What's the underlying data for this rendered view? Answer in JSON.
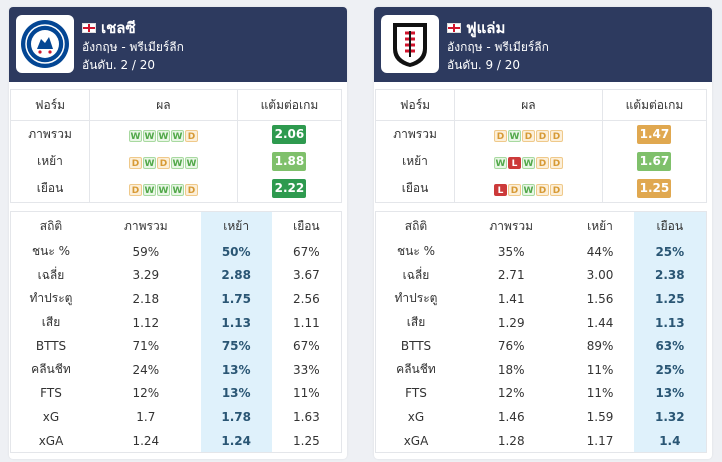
{
  "colors": {
    "header_bg": "#2d3a5f",
    "ppg_green_dark": "#2e9a4f",
    "ppg_green_light": "#7fc06b",
    "ppg_orange": "#e0a850",
    "highlight": "#dff1fb"
  },
  "form_headers": [
    "ฟอร์ม",
    "ผล",
    "แต้มต่อเกม"
  ],
  "stats_headers": [
    "สถิติ",
    "ภาพรวม",
    "เหย้า",
    "เยือน"
  ],
  "teams": [
    {
      "name": "เชลซี",
      "league": "อังกฤษ - พรีเมียร์ลีก",
      "rank": "อันดับ. 2 / 20",
      "logo_icon": "chelsea-crest-icon",
      "highlight_col": 2,
      "form": [
        {
          "label": "ภาพรวม",
          "results": [
            "W",
            "W",
            "W",
            "W",
            "D"
          ],
          "ppg": "2.06",
          "ppg_color": "#2e9a4f"
        },
        {
          "label": "เหย้า",
          "results": [
            "D",
            "W",
            "D",
            "W",
            "W"
          ],
          "ppg": "1.88",
          "ppg_color": "#7fc06b"
        },
        {
          "label": "เยือน",
          "results": [
            "D",
            "W",
            "W",
            "W",
            "D"
          ],
          "ppg": "2.22",
          "ppg_color": "#2e9a4f"
        }
      ],
      "stats": [
        {
          "label": "ชนะ %",
          "values": [
            "59%",
            "50%",
            "67%"
          ]
        },
        {
          "label": "เฉลี่ย",
          "values": [
            "3.29",
            "2.88",
            "3.67"
          ]
        },
        {
          "label": "ทำประตู",
          "values": [
            "2.18",
            "1.75",
            "2.56"
          ]
        },
        {
          "label": "เสีย",
          "values": [
            "1.12",
            "1.13",
            "1.11"
          ]
        },
        {
          "label": "BTTS",
          "values": [
            "71%",
            "75%",
            "67%"
          ]
        },
        {
          "label": "คลีนชีท",
          "values": [
            "24%",
            "13%",
            "33%"
          ]
        },
        {
          "label": "FTS",
          "values": [
            "12%",
            "13%",
            "11%"
          ]
        },
        {
          "label": "xG",
          "values": [
            "1.7",
            "1.78",
            "1.63"
          ]
        },
        {
          "label": "xGA",
          "values": [
            "1.24",
            "1.24",
            "1.25"
          ]
        }
      ]
    },
    {
      "name": "ฟูแล่ม",
      "league": "อังกฤษ - พรีเมียร์ลีก",
      "rank": "อันดับ. 9 / 20",
      "logo_icon": "fulham-crest-icon",
      "highlight_col": 3,
      "form": [
        {
          "label": "ภาพรวม",
          "results": [
            "D",
            "W",
            "D",
            "D",
            "D"
          ],
          "ppg": "1.47",
          "ppg_color": "#e0a850"
        },
        {
          "label": "เหย้า",
          "results": [
            "W",
            "L",
            "W",
            "D",
            "D"
          ],
          "ppg": "1.67",
          "ppg_color": "#7fc06b"
        },
        {
          "label": "เยือน",
          "results": [
            "L",
            "D",
            "W",
            "D",
            "D"
          ],
          "ppg": "1.25",
          "ppg_color": "#e0a850"
        }
      ],
      "stats": [
        {
          "label": "ชนะ %",
          "values": [
            "35%",
            "44%",
            "25%"
          ]
        },
        {
          "label": "เฉลี่ย",
          "values": [
            "2.71",
            "3.00",
            "2.38"
          ]
        },
        {
          "label": "ทำประตู",
          "values": [
            "1.41",
            "1.56",
            "1.25"
          ]
        },
        {
          "label": "เสีย",
          "values": [
            "1.29",
            "1.44",
            "1.13"
          ]
        },
        {
          "label": "BTTS",
          "values": [
            "76%",
            "89%",
            "63%"
          ]
        },
        {
          "label": "คลีนชีท",
          "values": [
            "18%",
            "11%",
            "25%"
          ]
        },
        {
          "label": "FTS",
          "values": [
            "12%",
            "11%",
            "13%"
          ]
        },
        {
          "label": "xG",
          "values": [
            "1.46",
            "1.59",
            "1.32"
          ]
        },
        {
          "label": "xGA",
          "values": [
            "1.28",
            "1.17",
            "1.4"
          ]
        }
      ]
    }
  ]
}
